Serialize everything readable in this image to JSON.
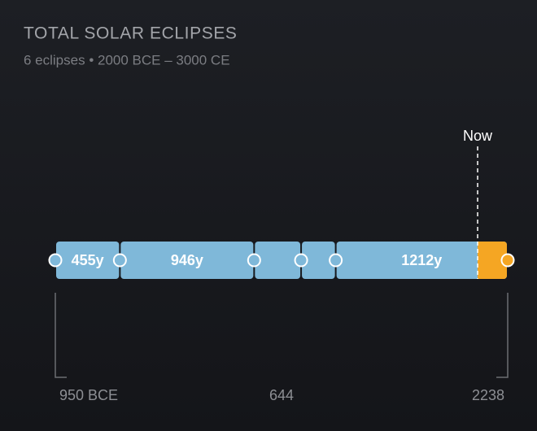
{
  "chart_data": {
    "type": "timeline",
    "title": "TOTAL SOLAR ECLIPSES",
    "subtitle": "6 eclipses • 2000 BCE – 3000 CE",
    "eclipses": [
      -950,
      -495,
      451,
      782,
      1026,
      2238
    ],
    "gaps": [
      455,
      946,
      331,
      244,
      1212
    ],
    "value_labels": [
      "455y",
      "946y",
      null,
      null,
      "1212y"
    ],
    "now": 2026,
    "now_label": "Now",
    "xlim": [
      -950,
      2238
    ],
    "xticks": [
      {
        "value": -950,
        "label": "950 BCE"
      },
      644,
      2238
    ],
    "color": "#7fb8d9",
    "future_color": "#f5a623"
  }
}
